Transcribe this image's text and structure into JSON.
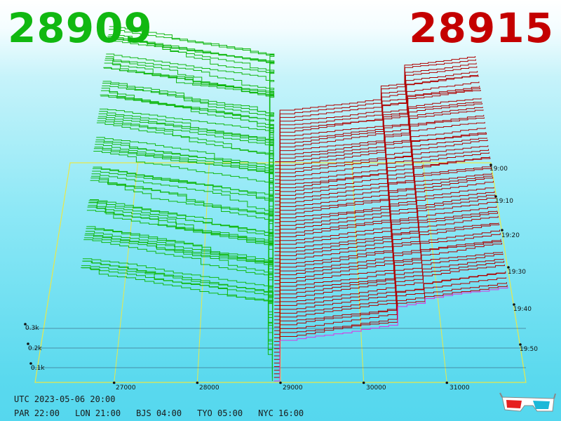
{
  "header": {
    "bid_price": "28909",
    "ask_price": "28915",
    "bid_color": "#11b811",
    "ask_color": "#c40000"
  },
  "chart_data": {
    "type": "3d-depth-chart",
    "title": "",
    "xlabel": "",
    "ylabel": "",
    "x_ticks": [
      "27000",
      "28000",
      "29000",
      "30000",
      "31000"
    ],
    "time_ticks": [
      "19:00",
      "19:10",
      "19:20",
      "19:30",
      "19:40",
      "19:50"
    ],
    "qty_ticks": [
      "0.1k",
      "0.2k",
      "0.3k"
    ],
    "bid_price": 28909,
    "ask_price": 28915,
    "series": [
      {
        "side": "bid",
        "color": "#11b811"
      },
      {
        "side": "ask",
        "color": "#b00000"
      }
    ]
  },
  "footer": {
    "utc": "UTC 2023-05-06 20:00",
    "zones": [
      "PAR 22:00",
      "LON 21:00",
      "BJS 04:00",
      "TYO 05:00",
      "NYC 16:00"
    ]
  },
  "icons": {
    "glasses": "3d-glasses-icon"
  }
}
